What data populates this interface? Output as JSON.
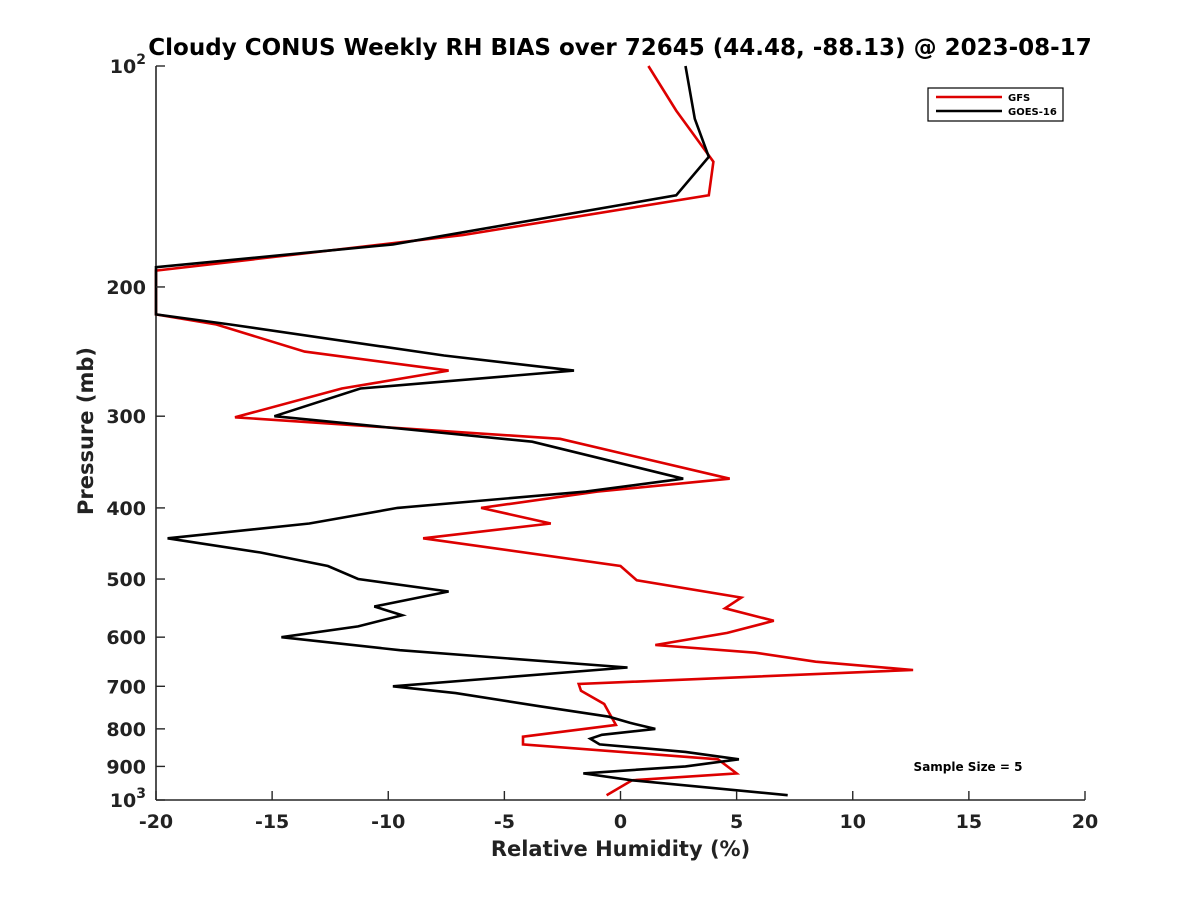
{
  "chart_data": {
    "type": "line",
    "title": "Cloudy CONUS Weekly RH BIAS over 72645 (44.48, -88.13) @ 2023-08-17",
    "xlabel": "Relative Humidity (%)",
    "ylabel": "Pressure (mb)",
    "xlim": [
      -20,
      20
    ],
    "ylim": [
      100,
      1000
    ],
    "y_scale": "log",
    "y_reversed": true,
    "grid": false,
    "x_ticks": [
      -20,
      -15,
      -10,
      -5,
      0,
      5,
      10,
      15,
      20
    ],
    "x_tick_labels": [
      "-20",
      "-15",
      "-10",
      "-5",
      "0",
      "5",
      "10",
      "15",
      "20"
    ],
    "y_ticks": [
      100,
      200,
      300,
      400,
      500,
      600,
      700,
      800,
      900,
      1000
    ],
    "y_tick_labels": [
      {
        "base": "10",
        "exp": "2"
      },
      {
        "base": "200",
        "exp": ""
      },
      {
        "base": "300",
        "exp": ""
      },
      {
        "base": "400",
        "exp": ""
      },
      {
        "base": "500",
        "exp": ""
      },
      {
        "base": "600",
        "exp": ""
      },
      {
        "base": "700",
        "exp": ""
      },
      {
        "base": "800",
        "exp": ""
      },
      {
        "base": "900",
        "exp": ""
      },
      {
        "base": "10",
        "exp": "3"
      }
    ],
    "legend": {
      "position": "top-right"
    },
    "annotation": "Sample Size = 5",
    "series": [
      {
        "name": "GFS",
        "color": "#dd0000",
        "points": [
          [
            1.2,
            100
          ],
          [
            2.4,
            115
          ],
          [
            4.0,
            135
          ],
          [
            3.8,
            150
          ],
          [
            -6.8,
            170
          ],
          [
            -20.0,
            190
          ],
          [
            -20.0,
            218
          ],
          [
            -17.4,
            225
          ],
          [
            -13.6,
            245
          ],
          [
            -7.4,
            260
          ],
          [
            -12.0,
            275
          ],
          [
            -16.6,
            301
          ],
          [
            -2.6,
            322
          ],
          [
            4.7,
            365
          ],
          [
            -1.0,
            380
          ],
          [
            -6.0,
            400
          ],
          [
            -3.0,
            420
          ],
          [
            -8.5,
            440
          ],
          [
            0.0,
            480
          ],
          [
            0.7,
            502
          ],
          [
            5.2,
            530
          ],
          [
            4.5,
            548
          ],
          [
            6.6,
            570
          ],
          [
            4.6,
            592
          ],
          [
            1.5,
            615
          ],
          [
            5.8,
            630
          ],
          [
            8.4,
            648
          ],
          [
            12.6,
            665
          ],
          [
            -1.8,
            695
          ],
          [
            -1.7,
            710
          ],
          [
            -0.7,
            740
          ],
          [
            -0.5,
            760
          ],
          [
            -0.2,
            790
          ],
          [
            -4.2,
            820
          ],
          [
            -4.2,
            840
          ],
          [
            4.2,
            880
          ],
          [
            5.0,
            920
          ],
          [
            0.5,
            940
          ],
          [
            -0.6,
            985
          ]
        ]
      },
      {
        "name": "GOES-16",
        "color": "#000000",
        "points": [
          [
            2.8,
            100
          ],
          [
            3.2,
            118
          ],
          [
            3.8,
            133
          ],
          [
            2.4,
            150
          ],
          [
            -9.8,
            175
          ],
          [
            -20.0,
            188
          ],
          [
            -20.0,
            218
          ],
          [
            -16.8,
            225
          ],
          [
            -7.6,
            248
          ],
          [
            -2.0,
            260
          ],
          [
            -11.2,
            275
          ],
          [
            -14.9,
            300
          ],
          [
            -3.8,
            325
          ],
          [
            2.7,
            365
          ],
          [
            -1.5,
            380
          ],
          [
            -9.6,
            400
          ],
          [
            -13.4,
            420
          ],
          [
            -19.5,
            440
          ],
          [
            -15.5,
            460
          ],
          [
            -12.6,
            480
          ],
          [
            -11.3,
            500
          ],
          [
            -7.4,
            520
          ],
          [
            -10.6,
            545
          ],
          [
            -9.4,
            560
          ],
          [
            -11.3,
            580
          ],
          [
            -14.6,
            600
          ],
          [
            -9.5,
            625
          ],
          [
            0.3,
            660
          ],
          [
            -9.8,
            700
          ],
          [
            -7.1,
            715
          ],
          [
            -3.5,
            745
          ],
          [
            -0.5,
            770
          ],
          [
            0.4,
            785
          ],
          [
            1.5,
            800
          ],
          [
            -0.8,
            815
          ],
          [
            -1.3,
            825
          ],
          [
            -0.9,
            840
          ],
          [
            2.8,
            860
          ],
          [
            5.1,
            880
          ],
          [
            2.8,
            900
          ],
          [
            -1.6,
            920
          ],
          [
            0.5,
            940
          ],
          [
            7.2,
            985
          ]
        ]
      }
    ]
  }
}
